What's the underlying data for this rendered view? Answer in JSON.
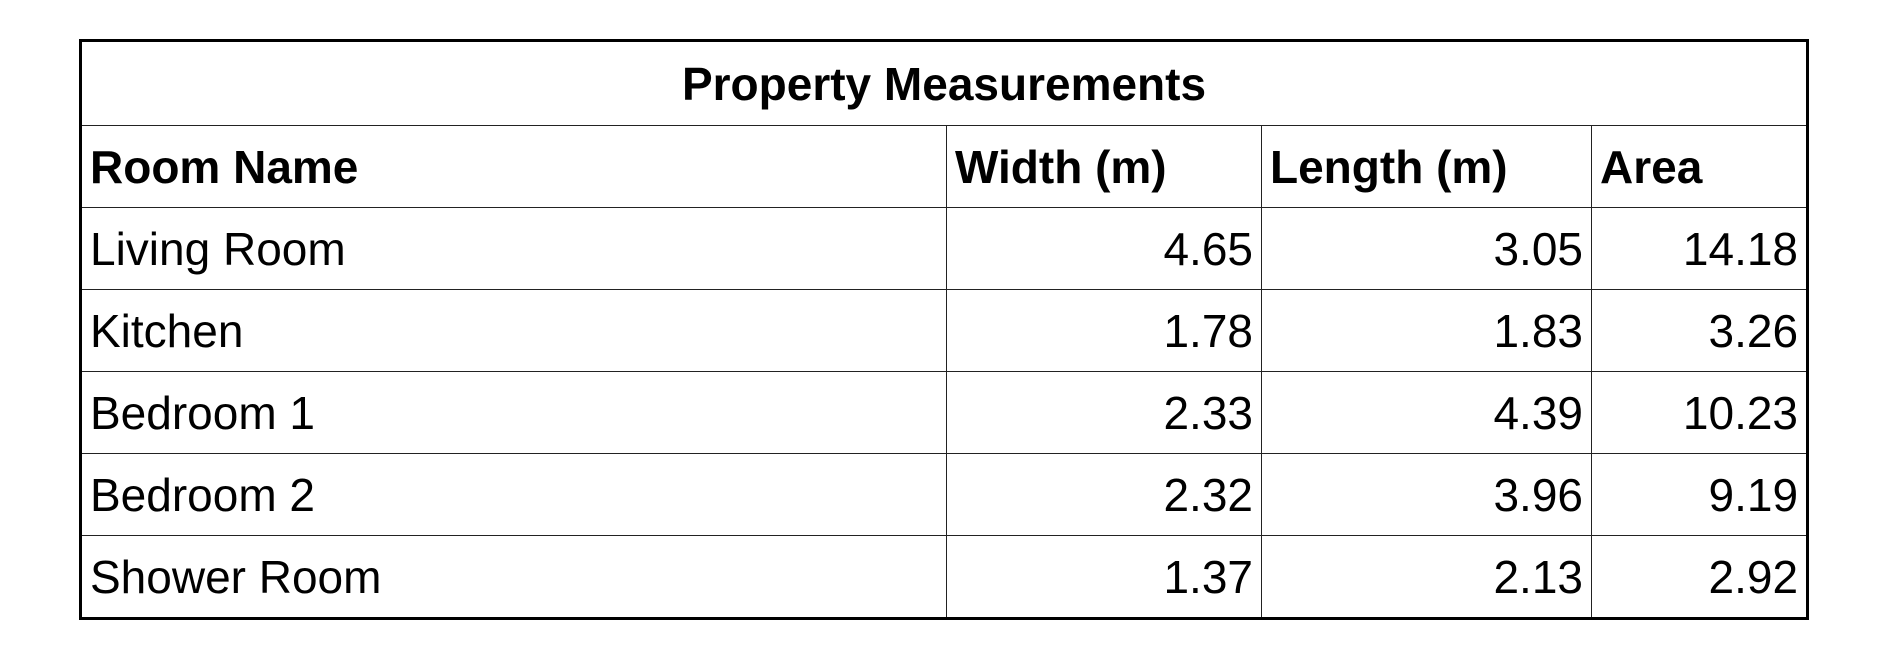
{
  "table": {
    "title": "Property Measurements",
    "columns": [
      "Room Name",
      "Width (m)",
      "Length (m)",
      "Area"
    ],
    "rows": [
      [
        "Living Room",
        4.65,
        3.05,
        14.18
      ],
      [
        "Kitchen",
        1.78,
        1.83,
        3.26
      ],
      [
        "Bedroom 1",
        2.33,
        4.39,
        10.23
      ],
      [
        "Bedroom 2",
        2.32,
        3.96,
        9.19
      ],
      [
        "Shower Room",
        1.37,
        2.13,
        2.92
      ]
    ]
  }
}
